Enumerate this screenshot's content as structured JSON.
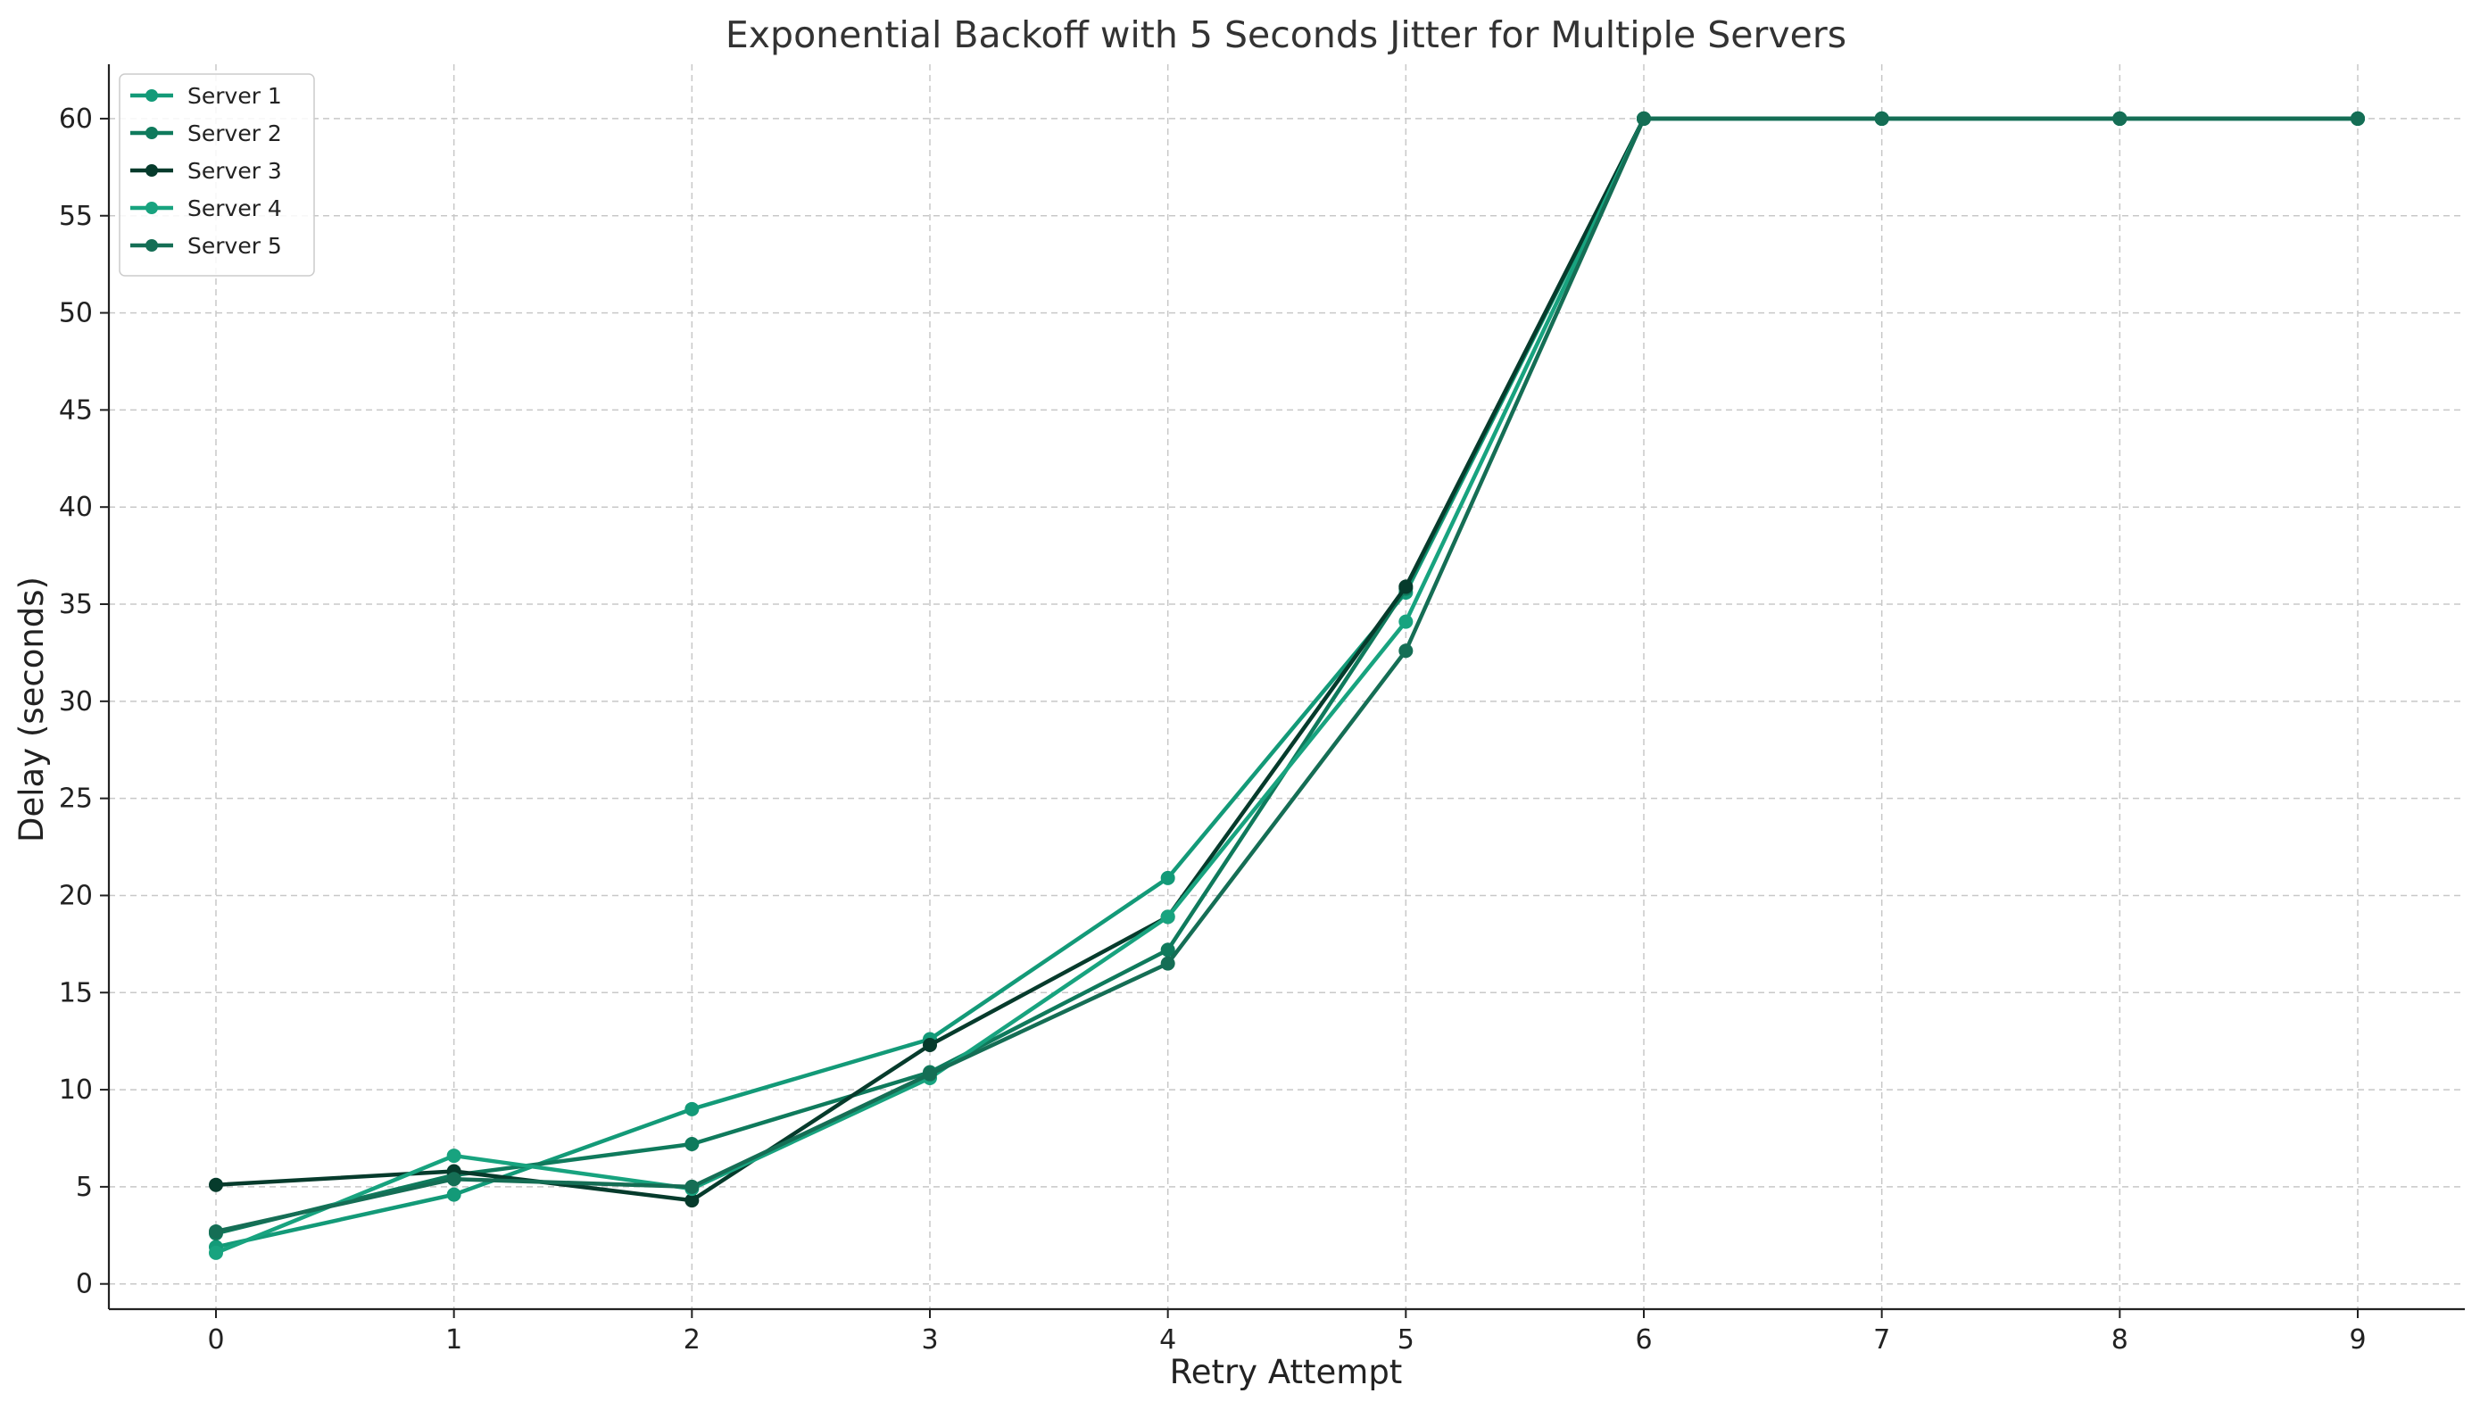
{
  "chart_data": {
    "type": "line",
    "title": "Exponential Backoff with 5 Seconds Jitter for Multiple Servers",
    "xlabel": "Retry Attempt",
    "ylabel": "Delay (seconds)",
    "x": [
      0,
      1,
      2,
      3,
      4,
      5,
      6,
      7,
      8,
      9
    ],
    "xlim": [
      -0.45,
      9.45
    ],
    "ylim": [
      -1.3,
      62.8
    ],
    "xticks": [
      0,
      1,
      2,
      3,
      4,
      5,
      6,
      7,
      8,
      9
    ],
    "yticks": [
      0,
      5,
      10,
      15,
      20,
      25,
      30,
      35,
      40,
      45,
      50,
      55,
      60
    ],
    "grid": true,
    "legend_position": "top-left",
    "series": [
      {
        "name": "Server 1",
        "color": "#139a78",
        "values": [
          1.9,
          4.6,
          9.0,
          12.6,
          20.9,
          35.6,
          60,
          60,
          60,
          60
        ]
      },
      {
        "name": "Server 2",
        "color": "#0f7a5c",
        "values": [
          2.6,
          5.6,
          7.2,
          10.9,
          17.2,
          35.8,
          60,
          60,
          60,
          60
        ]
      },
      {
        "name": "Server 3",
        "color": "#063b2c",
        "values": [
          5.1,
          5.8,
          4.3,
          12.3,
          18.9,
          35.9,
          60,
          60,
          60,
          60
        ]
      },
      {
        "name": "Server 4",
        "color": "#18a37f",
        "values": [
          1.6,
          6.6,
          4.9,
          10.6,
          18.9,
          34.1,
          60,
          60,
          60,
          60
        ]
      },
      {
        "name": "Server 5",
        "color": "#156e55",
        "values": [
          2.7,
          5.4,
          5.0,
          10.8,
          16.5,
          32.6,
          60,
          60,
          60,
          60
        ]
      }
    ]
  }
}
